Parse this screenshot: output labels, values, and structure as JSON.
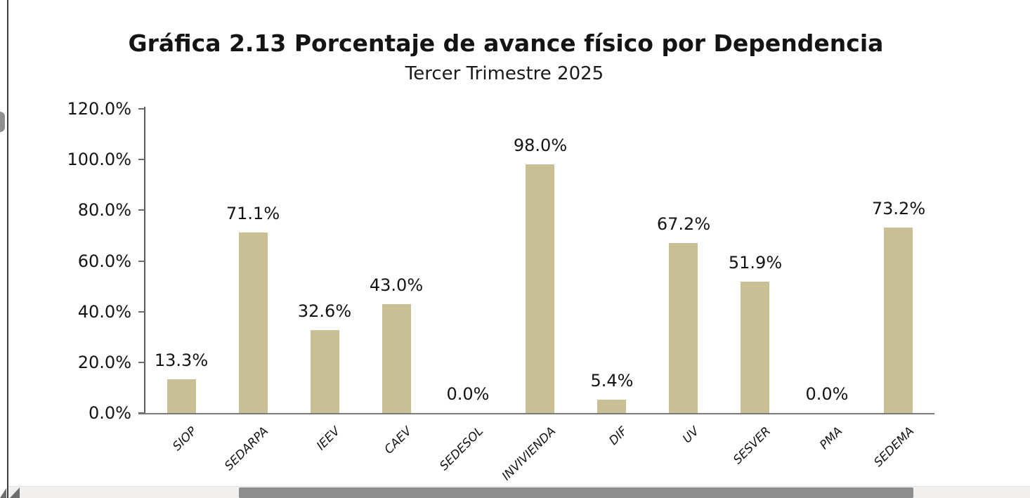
{
  "header": {
    "title": "Gráfica 2.13 Porcentaje de avance físico por Dependencia",
    "subtitle": "Tercer Trimestre 2025"
  },
  "chart_data": {
    "type": "bar",
    "title": "Gráfica 2.13 Porcentaje de avance físico por Dependencia",
    "subtitle": "Tercer Trimestre 2025",
    "categories": [
      "SIOP",
      "SEDARPA",
      "IEEV",
      "CAEV",
      "SEDESOL",
      "INVIVIENDA",
      "DIF",
      "UV",
      "SESVER",
      "PMA",
      "SEDEMA"
    ],
    "values": [
      13.3,
      71.1,
      32.6,
      43.0,
      0.0,
      98.0,
      5.4,
      67.2,
      51.9,
      0.0,
      73.2
    ],
    "value_labels": [
      "13.3%",
      "71.1%",
      "32.6%",
      "43.0%",
      "0.0%",
      "98.0%",
      "5.4%",
      "67.2%",
      "51.9%",
      "0.0%",
      "73.2%"
    ],
    "xlabel": "",
    "ylabel": "",
    "ylim": [
      0,
      120
    ],
    "ytick_interval": 20,
    "ytick_labels": [
      "0.0%",
      "20.0%",
      "40.0%",
      "60.0%",
      "80.0%",
      "100.0%",
      "120.0%"
    ],
    "grid": false,
    "legend": "none",
    "bar_color": "#c8c094",
    "axis_color": "#5a5a5a"
  },
  "scrollbar": {
    "orientation": "horizontal"
  }
}
